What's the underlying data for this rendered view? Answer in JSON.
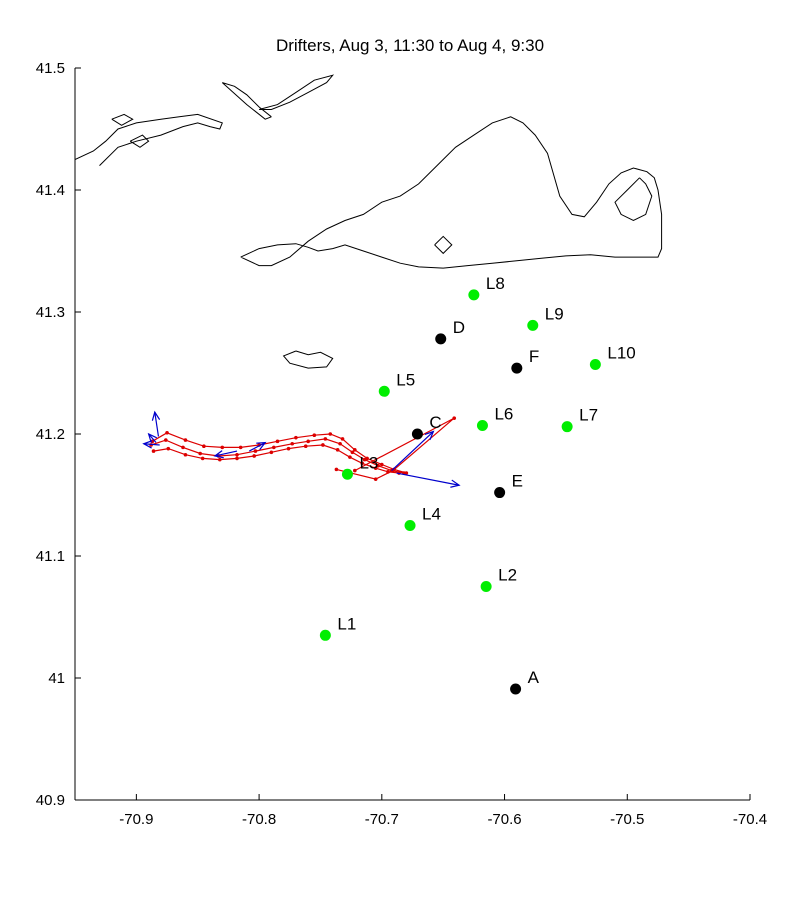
{
  "chart_data": {
    "type": "scatter",
    "title": "Drifters, Aug 3, 11:30 to Aug 4, 9:30",
    "xlabel": "",
    "ylabel": "",
    "xlim": [
      -70.95,
      -70.4
    ],
    "ylim": [
      40.9,
      41.5
    ],
    "xticks": [
      -70.9,
      -70.8,
      -70.7,
      -70.6,
      -70.5,
      -70.4
    ],
    "yticks": [
      40.9,
      41,
      41.1,
      41.2,
      41.3,
      41.4,
      41.5
    ],
    "grid": false,
    "colors": {
      "green_station": "#00ee00",
      "black_station": "#000000",
      "drifter_track": "#dd0000",
      "velocity_arrow": "#0000cc",
      "coastline": "#000000"
    },
    "stations": [
      {
        "label": "L1",
        "x": -70.746,
        "y": 41.035,
        "color": "green"
      },
      {
        "label": "L2",
        "x": -70.615,
        "y": 41.075,
        "color": "green"
      },
      {
        "label": "L3",
        "x": -70.728,
        "y": 41.167,
        "color": "green"
      },
      {
        "label": "L4",
        "x": -70.677,
        "y": 41.125,
        "color": "green"
      },
      {
        "label": "L5",
        "x": -70.698,
        "y": 41.235,
        "color": "green"
      },
      {
        "label": "L6",
        "x": -70.618,
        "y": 41.207,
        "color": "green"
      },
      {
        "label": "L7",
        "x": -70.549,
        "y": 41.206,
        "color": "green"
      },
      {
        "label": "L8",
        "x": -70.625,
        "y": 41.314,
        "color": "green"
      },
      {
        "label": "L9",
        "x": -70.577,
        "y": 41.289,
        "color": "green"
      },
      {
        "label": "L10",
        "x": -70.526,
        "y": 41.257,
        "color": "green"
      },
      {
        "label": "A",
        "x": -70.591,
        "y": 40.991,
        "color": "black"
      },
      {
        "label": "C",
        "x": -70.671,
        "y": 41.2,
        "color": "black"
      },
      {
        "label": "D",
        "x": -70.652,
        "y": 41.278,
        "color": "black"
      },
      {
        "label": "E",
        "x": -70.604,
        "y": 41.152,
        "color": "black"
      },
      {
        "label": "F",
        "x": -70.59,
        "y": 41.254,
        "color": "black"
      }
    ],
    "drifter_tracks": [
      {
        "points": [
          [
            -70.887,
            41.194
          ],
          [
            -70.875,
            41.201
          ],
          [
            -70.86,
            41.195
          ],
          [
            -70.845,
            41.19
          ],
          [
            -70.83,
            41.189
          ],
          [
            -70.815,
            41.189
          ],
          [
            -70.8,
            41.191
          ],
          [
            -70.785,
            41.194
          ],
          [
            -70.77,
            41.197
          ],
          [
            -70.755,
            41.199
          ],
          [
            -70.742,
            41.2
          ],
          [
            -70.732,
            41.196
          ],
          [
            -70.722,
            41.187
          ],
          [
            -70.712,
            41.18
          ],
          [
            -70.7,
            41.175
          ],
          [
            -70.69,
            41.171
          ],
          [
            -70.68,
            41.168
          ]
        ]
      },
      {
        "points": [
          [
            -70.888,
            41.191
          ],
          [
            -70.876,
            41.195
          ],
          [
            -70.862,
            41.189
          ],
          [
            -70.848,
            41.184
          ],
          [
            -70.833,
            41.182
          ],
          [
            -70.818,
            41.183
          ],
          [
            -70.803,
            41.186
          ],
          [
            -70.788,
            41.189
          ],
          [
            -70.773,
            41.192
          ],
          [
            -70.76,
            41.194
          ],
          [
            -70.746,
            41.196
          ],
          [
            -70.734,
            41.192
          ],
          [
            -70.724,
            41.185
          ],
          [
            -70.714,
            41.179
          ],
          [
            -70.703,
            41.174
          ],
          [
            -70.692,
            41.17
          ],
          [
            -70.682,
            41.168
          ]
        ]
      },
      {
        "points": [
          [
            -70.886,
            41.186
          ],
          [
            -70.874,
            41.188
          ],
          [
            -70.86,
            41.183
          ],
          [
            -70.846,
            41.18
          ],
          [
            -70.832,
            41.179
          ],
          [
            -70.818,
            41.18
          ],
          [
            -70.804,
            41.182
          ],
          [
            -70.79,
            41.185
          ],
          [
            -70.776,
            41.188
          ],
          [
            -70.762,
            41.19
          ],
          [
            -70.748,
            41.191
          ],
          [
            -70.736,
            41.187
          ],
          [
            -70.726,
            41.181
          ],
          [
            -70.716,
            41.176
          ],
          [
            -70.705,
            41.172
          ],
          [
            -70.695,
            41.169
          ],
          [
            -70.686,
            41.168
          ]
        ]
      },
      {
        "points": [
          [
            -70.737,
            41.171
          ],
          [
            -70.705,
            41.163
          ],
          [
            -70.691,
            41.17
          ],
          [
            -70.641,
            41.213
          ],
          [
            -70.722,
            41.17
          ]
        ]
      }
    ],
    "velocity_arrows": [
      {
        "from": [
          -70.882,
          41.198
        ],
        "to": [
          -70.885,
          41.218
        ]
      },
      {
        "from": [
          -70.884,
          41.193
        ],
        "to": [
          -70.89,
          41.2
        ]
      },
      {
        "from": [
          -70.881,
          41.191
        ],
        "to": [
          -70.894,
          41.192
        ]
      },
      {
        "from": [
          -70.818,
          41.186
        ],
        "to": [
          -70.836,
          41.182
        ]
      },
      {
        "from": [
          -70.808,
          41.186
        ],
        "to": [
          -70.795,
          41.193
        ]
      },
      {
        "from": [
          -70.692,
          41.17
        ],
        "to": [
          -70.658,
          41.202
        ]
      },
      {
        "from": [
          -70.688,
          41.168
        ],
        "to": [
          -70.637,
          41.158
        ]
      }
    ],
    "coastline": [
      [
        [
          -70.93,
          41.42
        ],
        [
          -70.915,
          41.435
        ],
        [
          -70.9,
          41.44
        ],
        [
          -70.88,
          41.445
        ],
        [
          -70.862,
          41.452
        ],
        [
          -70.85,
          41.455
        ],
        [
          -70.84,
          41.452
        ],
        [
          -70.832,
          41.45
        ],
        [
          -70.83,
          41.455
        ],
        [
          -70.85,
          41.462
        ],
        [
          -70.865,
          41.46
        ],
        [
          -70.88,
          41.458
        ],
        [
          -70.9,
          41.455
        ],
        [
          -70.915,
          41.45
        ],
        [
          -70.925,
          41.44
        ],
        [
          -70.935,
          41.432
        ],
        [
          -70.95,
          41.425
        ]
      ],
      [
        [
          -70.905,
          41.44
        ],
        [
          -70.895,
          41.445
        ],
        [
          -70.89,
          41.44
        ],
        [
          -70.897,
          41.435
        ],
        [
          -70.905,
          41.44
        ]
      ],
      [
        [
          -70.92,
          41.458
        ],
        [
          -70.91,
          41.462
        ],
        [
          -70.903,
          41.458
        ],
        [
          -70.912,
          41.453
        ],
        [
          -70.92,
          41.458
        ]
      ],
      [
        [
          -70.79,
          41.46
        ],
        [
          -70.8,
          41.468
        ],
        [
          -70.81,
          41.478
        ],
        [
          -70.82,
          41.485
        ],
        [
          -70.83,
          41.488
        ],
        [
          -70.81,
          41.47
        ],
        [
          -70.795,
          41.458
        ],
        [
          -70.79,
          41.46
        ]
      ],
      [
        [
          -70.8,
          41.466
        ],
        [
          -70.785,
          41.47
        ],
        [
          -70.77,
          41.48
        ],
        [
          -70.755,
          41.49
        ],
        [
          -70.74,
          41.494
        ],
        [
          -70.745,
          41.488
        ],
        [
          -70.76,
          41.48
        ],
        [
          -70.775,
          41.472
        ],
        [
          -70.79,
          41.466
        ],
        [
          -70.8,
          41.466
        ]
      ],
      [
        [
          -70.815,
          41.345
        ],
        [
          -70.8,
          41.352
        ],
        [
          -70.785,
          41.355
        ],
        [
          -70.77,
          41.356
        ],
        [
          -70.76,
          41.353
        ],
        [
          -70.752,
          41.35
        ],
        [
          -70.74,
          41.352
        ],
        [
          -70.73,
          41.355
        ],
        [
          -70.715,
          41.35
        ],
        [
          -70.7,
          41.345
        ],
        [
          -70.685,
          41.34
        ],
        [
          -70.67,
          41.337
        ],
        [
          -70.65,
          41.336
        ],
        [
          -70.63,
          41.338
        ],
        [
          -70.61,
          41.34
        ],
        [
          -70.59,
          41.342
        ],
        [
          -70.57,
          41.344
        ],
        [
          -70.55,
          41.346
        ],
        [
          -70.53,
          41.347
        ],
        [
          -70.51,
          41.345
        ],
        [
          -70.49,
          41.345
        ],
        [
          -70.475,
          41.345
        ],
        [
          -70.472,
          41.352
        ],
        [
          -70.472,
          41.38
        ],
        [
          -70.475,
          41.4
        ],
        [
          -70.478,
          41.41
        ],
        [
          -70.484,
          41.415
        ],
        [
          -70.495,
          41.418
        ],
        [
          -70.505,
          41.414
        ],
        [
          -70.515,
          41.405
        ],
        [
          -70.525,
          41.39
        ],
        [
          -70.535,
          41.378
        ],
        [
          -70.545,
          41.38
        ],
        [
          -70.555,
          41.395
        ],
        [
          -70.565,
          41.43
        ],
        [
          -70.575,
          41.445
        ],
        [
          -70.585,
          41.455
        ],
        [
          -70.595,
          41.46
        ],
        [
          -70.61,
          41.455
        ],
        [
          -70.625,
          41.445
        ],
        [
          -70.64,
          41.435
        ],
        [
          -70.655,
          41.42
        ],
        [
          -70.67,
          41.405
        ],
        [
          -70.685,
          41.395
        ],
        [
          -70.7,
          41.39
        ],
        [
          -70.715,
          41.38
        ],
        [
          -70.73,
          41.375
        ],
        [
          -70.745,
          41.368
        ],
        [
          -70.76,
          41.358
        ],
        [
          -70.775,
          41.345
        ],
        [
          -70.79,
          41.338
        ],
        [
          -70.8,
          41.338
        ],
        [
          -70.815,
          41.345
        ]
      ],
      [
        [
          -70.49,
          41.41
        ],
        [
          -70.5,
          41.4
        ],
        [
          -70.51,
          41.39
        ],
        [
          -70.505,
          41.38
        ],
        [
          -70.495,
          41.375
        ],
        [
          -70.485,
          41.38
        ],
        [
          -70.48,
          41.395
        ],
        [
          -70.485,
          41.405
        ],
        [
          -70.49,
          41.41
        ]
      ],
      [
        [
          -70.657,
          41.355
        ],
        [
          -70.65,
          41.348
        ],
        [
          -70.643,
          41.355
        ],
        [
          -70.65,
          41.362
        ],
        [
          -70.657,
          41.355
        ]
      ],
      [
        [
          -70.77,
          41.268
        ],
        [
          -70.76,
          41.265
        ],
        [
          -70.75,
          41.267
        ],
        [
          -70.74,
          41.262
        ],
        [
          -70.745,
          41.255
        ],
        [
          -70.76,
          41.254
        ],
        [
          -70.775,
          41.258
        ],
        [
          -70.78,
          41.264
        ],
        [
          -70.77,
          41.268
        ]
      ]
    ]
  }
}
